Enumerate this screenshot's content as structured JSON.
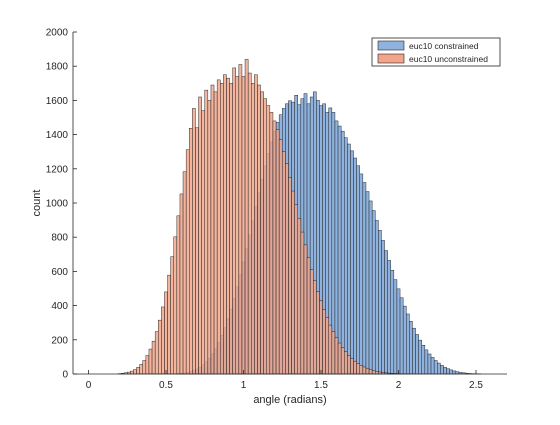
{
  "chart_data": {
    "type": "bar",
    "title": "",
    "xlabel": "angle (radians)",
    "ylabel": "count",
    "xlim": [
      -0.1,
      2.7
    ],
    "ylim": [
      0,
      2000
    ],
    "grid": false,
    "legend_position": "top-right",
    "x_ticks": [
      {
        "value": 0,
        "label": "0"
      },
      {
        "value": 0.5,
        "label": "0.5"
      },
      {
        "value": 1,
        "label": "1"
      },
      {
        "value": 1.5,
        "label": "1.5"
      },
      {
        "value": 2,
        "label": "2"
      },
      {
        "value": 2.5,
        "label": "2.5"
      }
    ],
    "y_ticks": [
      {
        "value": 0,
        "label": "0"
      },
      {
        "value": 200,
        "label": "200"
      },
      {
        "value": 400,
        "label": "400"
      },
      {
        "value": 600,
        "label": "600"
      },
      {
        "value": 800,
        "label": "800"
      },
      {
        "value": 1000,
        "label": "1000"
      },
      {
        "value": 1200,
        "label": "1200"
      },
      {
        "value": 1400,
        "label": "1400"
      },
      {
        "value": 1600,
        "label": "1600"
      },
      {
        "value": 1800,
        "label": "1800"
      },
      {
        "value": 2000,
        "label": "2000"
      }
    ],
    "bin_width": 0.02,
    "x": [
      0.2,
      0.22,
      0.24,
      0.26,
      0.28,
      0.3,
      0.32,
      0.34,
      0.36,
      0.38,
      0.4,
      0.42,
      0.44,
      0.46,
      0.48,
      0.5,
      0.52,
      0.54,
      0.56,
      0.58,
      0.6,
      0.62,
      0.64,
      0.66,
      0.68,
      0.7,
      0.72,
      0.74,
      0.76,
      0.78,
      0.8,
      0.82,
      0.84,
      0.86,
      0.88,
      0.9,
      0.92,
      0.94,
      0.96,
      0.98,
      1.0,
      1.02,
      1.04,
      1.06,
      1.08,
      1.1,
      1.12,
      1.14,
      1.16,
      1.18,
      1.2,
      1.22,
      1.24,
      1.26,
      1.28,
      1.3,
      1.32,
      1.34,
      1.36,
      1.38,
      1.4,
      1.42,
      1.44,
      1.46,
      1.48,
      1.5,
      1.52,
      1.54,
      1.56,
      1.58,
      1.6,
      1.62,
      1.64,
      1.66,
      1.68,
      1.7,
      1.72,
      1.74,
      1.76,
      1.78,
      1.8,
      1.82,
      1.84,
      1.86,
      1.88,
      1.9,
      1.92,
      1.94,
      1.96,
      1.98,
      2.0,
      2.02,
      2.04,
      2.06,
      2.08,
      2.1,
      2.12,
      2.14,
      2.16,
      2.18,
      2.2,
      2.22,
      2.24,
      2.26,
      2.28,
      2.3,
      2.32,
      2.34,
      2.36,
      2.38,
      2.4,
      2.42,
      2.44,
      2.46,
      2.48,
      2.5,
      2.52,
      2.54,
      2.56,
      2.58
    ],
    "series": [
      {
        "name": "euc10 constrained",
        "color": "#8fb3de",
        "values": [
          0,
          0,
          0,
          0,
          0,
          0,
          0,
          0,
          0,
          0,
          0,
          0,
          0,
          0,
          0,
          0,
          0,
          0,
          0,
          2,
          4,
          6,
          9,
          14,
          21,
          29,
          40,
          54,
          71,
          92,
          118,
          148,
          184,
          225,
          271,
          323,
          380,
          442,
          509,
          580,
          655,
          733,
          813,
          895,
          978,
          1060,
          1140,
          1217,
          1290,
          1357,
          1418,
          1471,
          1516,
          1553,
          1580,
          1598,
          1590,
          1630,
          1575,
          1610,
          1640,
          1580,
          1620,
          1650,
          1600,
          1570,
          1580,
          1530,
          1556,
          1530,
          1480,
          1450,
          1420,
          1382,
          1345,
          1305,
          1263,
          1218,
          1170,
          1120,
          1067,
          1012,
          956,
          898,
          840,
          781,
          722,
          664,
          607,
          552,
          498,
          446,
          397,
          351,
          308,
          268,
          231,
          198,
          168,
          141,
          117,
          97,
          79,
          64,
          51,
          40,
          31,
          24,
          18,
          13,
          9,
          7,
          5,
          3,
          2,
          1,
          1,
          0,
          0,
          0
        ]
      },
      {
        "name": "euc10 unconstrained",
        "color": "#f2a58a",
        "values": [
          2,
          4,
          7,
          11,
          17,
          26,
          39,
          56,
          79,
          108,
          146,
          192,
          248,
          315,
          392,
          480,
          578,
          686,
          802,
          925,
          1053,
          1183,
          1312,
          1437,
          1553,
          1440,
          1620,
          1540,
          1660,
          1600,
          1690,
          1650,
          1720,
          1700,
          1750,
          1730,
          1700,
          1790,
          1740,
          1810,
          1740,
          1840,
          1760,
          1700,
          1750,
          1690,
          1650,
          1610,
          1570,
          1530,
          1480,
          1430,
          1370,
          1300,
          1230,
          1150,
          1070,
          990,
          910,
          830,
          755,
          680,
          610,
          545,
          484,
          428,
          376,
          329,
          286,
          247,
          212,
          181,
          154,
          130,
          109,
          91,
          75,
          62,
          50,
          41,
          33,
          26,
          20,
          16,
          12,
          9,
          7,
          5,
          4,
          3,
          2,
          1,
          1,
          1,
          0,
          0,
          0,
          0,
          0,
          0,
          0,
          0,
          0,
          0,
          0,
          0,
          0,
          0,
          0,
          0,
          0,
          0,
          0,
          0,
          0,
          0,
          0,
          0,
          0,
          0
        ]
      }
    ]
  }
}
